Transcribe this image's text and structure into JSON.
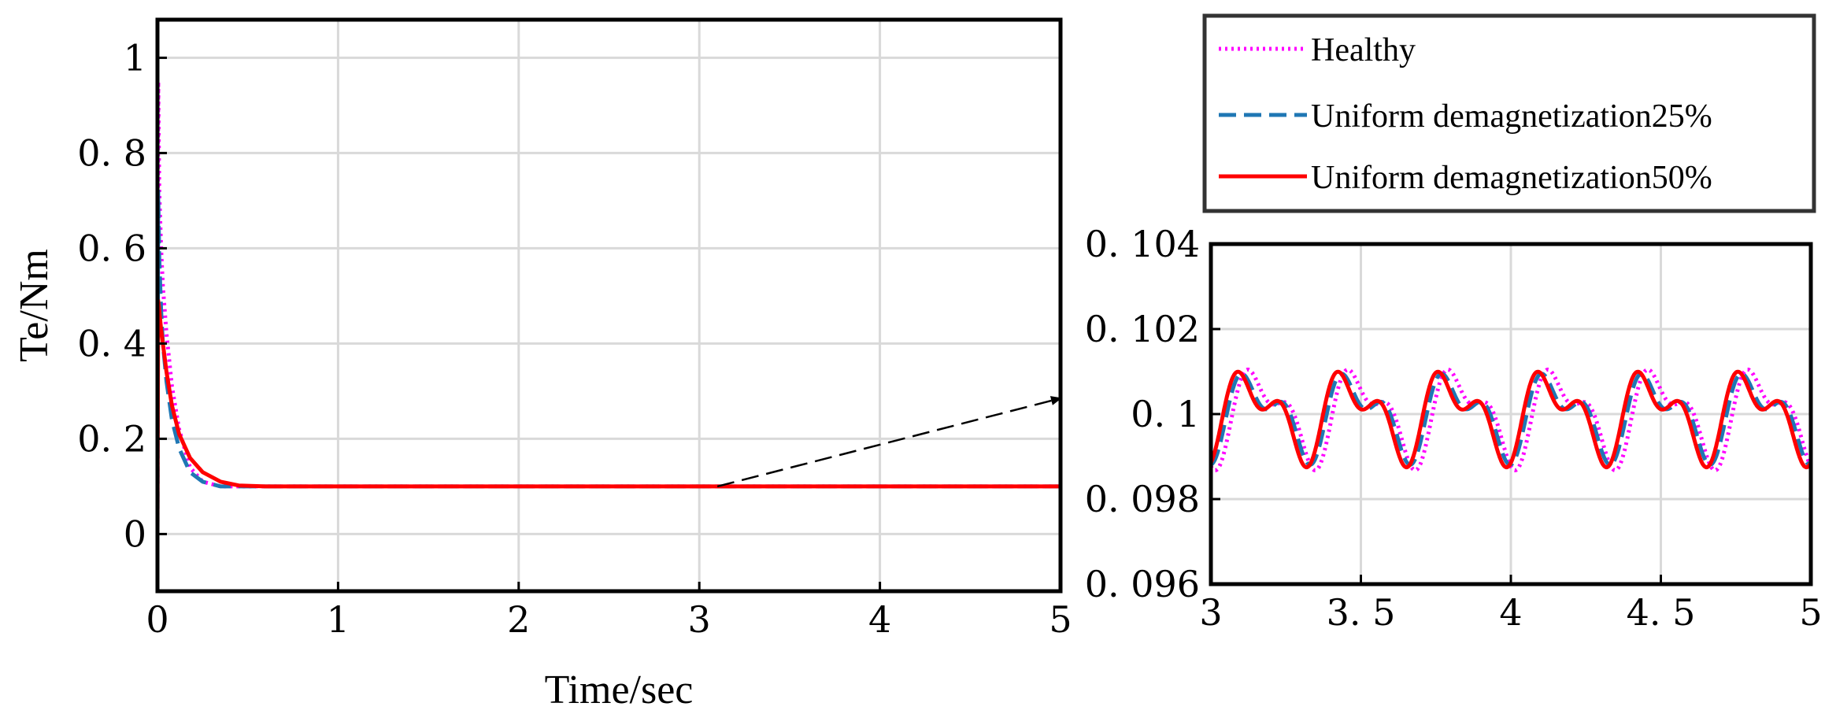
{
  "chart_data": [
    {
      "type": "line",
      "title": "",
      "xlabel": "Time/sec",
      "ylabel": "Te/Nm",
      "xlim": [
        0,
        5
      ],
      "ylim": [
        -0.12,
        1.08
      ],
      "xticks": [
        0,
        1,
        2,
        3,
        4,
        5
      ],
      "xtick_labels": [
        "0",
        "1",
        "2",
        "3",
        "4",
        "5"
      ],
      "yticks": [
        0,
        0.2,
        0.4,
        0.6,
        0.8,
        1
      ],
      "ytick_labels": [
        "0",
        "0. 2",
        "0. 4",
        "0. 6",
        "0. 8",
        "1"
      ],
      "grid": true,
      "series": [
        {
          "name": "Healthy",
          "color": "#ff00ff",
          "style": "dotted",
          "x": [
            0,
            0.004,
            0.01,
            0.02,
            0.03,
            0.05,
            0.08,
            0.12,
            0.18,
            0.25,
            0.35,
            0.45,
            0.6,
            1,
            2,
            3,
            4,
            5
          ],
          "y": [
            0,
            0.95,
            0.72,
            0.6,
            0.52,
            0.42,
            0.31,
            0.22,
            0.14,
            0.11,
            0.1,
            0.1,
            0.1,
            0.1,
            0.1,
            0.1,
            0.1,
            0.1
          ]
        },
        {
          "name": "Uniform demagnetization25%",
          "color": "#1f77b4",
          "style": "dashed",
          "x": [
            0,
            0.004,
            0.01,
            0.02,
            0.03,
            0.05,
            0.08,
            0.12,
            0.18,
            0.25,
            0.35,
            0.45,
            0.6,
            1,
            2,
            3,
            4,
            5
          ],
          "y": [
            0,
            0.72,
            0.58,
            0.47,
            0.4,
            0.32,
            0.24,
            0.18,
            0.13,
            0.11,
            0.1,
            0.1,
            0.1,
            0.1,
            0.1,
            0.1,
            0.1,
            0.1
          ]
        },
        {
          "name": "Uniform demagnetization50%",
          "color": "#ff0000",
          "style": "solid",
          "x": [
            0,
            0.004,
            0.01,
            0.02,
            0.03,
            0.05,
            0.08,
            0.12,
            0.18,
            0.25,
            0.35,
            0.45,
            0.6,
            1,
            2,
            3,
            4,
            5
          ],
          "y": [
            0,
            0.49,
            0.47,
            0.43,
            0.4,
            0.34,
            0.27,
            0.21,
            0.16,
            0.13,
            0.11,
            0.102,
            0.1,
            0.1,
            0.1,
            0.1,
            0.1,
            0.1
          ]
        }
      ],
      "annotation": {
        "text": "",
        "arrow_from": [
          3.1,
          0.1
        ],
        "arrow_to": [
          5,
          0.285
        ]
      }
    },
    {
      "type": "line",
      "title": "",
      "xlabel": "",
      "ylabel": "",
      "xlim": [
        3,
        5
      ],
      "ylim": [
        0.096,
        0.104
      ],
      "xticks": [
        3,
        3.5,
        4,
        4.5,
        5
      ],
      "xtick_labels": [
        "3",
        "3. 5",
        "4",
        "4. 5",
        "5"
      ],
      "yticks": [
        0.096,
        0.098,
        0.1,
        0.102,
        0.104
      ],
      "ytick_labels": [
        "0. 096",
        "0. 098",
        "0. 1",
        "0. 102",
        "0. 104"
      ],
      "grid": true,
      "series": [
        {
          "name": "Healthy",
          "color": "#ff00ff",
          "style": "dotted",
          "period": 0.3333,
          "mean": 0.1,
          "amp1": 0.0009,
          "amp2": 0.0009,
          "phase_offset": 0.03
        },
        {
          "name": "Uniform demagnetization25%",
          "color": "#1f77b4",
          "style": "dashed",
          "period": 0.3333,
          "mean": 0.1,
          "amp1": 0.00075,
          "amp2": 0.00092,
          "phase_offset": 0.012
        },
        {
          "name": "Uniform demagnetization50%",
          "color": "#ff0000",
          "style": "solid",
          "period": 0.3333,
          "mean": 0.1,
          "amp1": 0.00078,
          "amp2": 0.00098,
          "phase_offset": 0
        }
      ]
    }
  ],
  "legend": {
    "placement": "top-right",
    "entries": [
      {
        "label": "Healthy",
        "color": "#ff00ff",
        "style": "dotted"
      },
      {
        "label": "Uniform demagnetization25%",
        "color": "#1f77b4",
        "style": "dashed"
      },
      {
        "label": "Uniform demagnetization50%",
        "color": "#ff0000",
        "style": "solid"
      }
    ]
  }
}
